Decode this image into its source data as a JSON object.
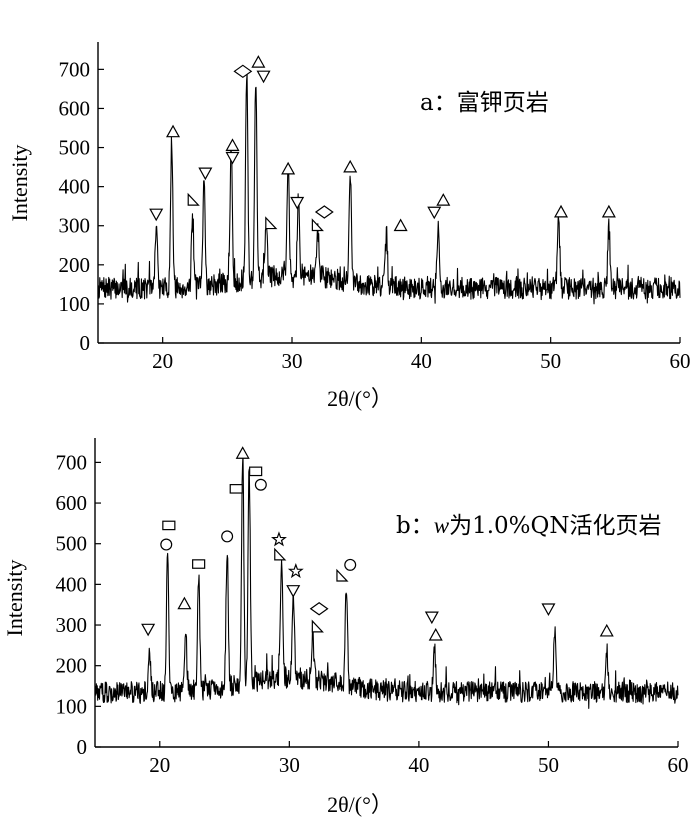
{
  "chart_data": [
    {
      "type": "line",
      "title": "a：富钾页岩",
      "xlabel": "2θ/(°）",
      "ylabel": "Intensity",
      "xlim": [
        15,
        60
      ],
      "ylim": [
        0,
        770
      ],
      "xticks": [
        "20",
        "30",
        "40",
        "50",
        "60"
      ],
      "yticks": [
        "0",
        "100",
        "200",
        "300",
        "400",
        "500",
        "600",
        "700"
      ],
      "grid": false,
      "baseline": 140,
      "noise": 28,
      "peaks": [
        {
          "x": 19.5,
          "y": 300
        },
        {
          "x": 20.7,
          "y": 515
        },
        {
          "x": 22.3,
          "y": 320
        },
        {
          "x": 23.2,
          "y": 415
        },
        {
          "x": 25.3,
          "y": 480
        },
        {
          "x": 26.5,
          "y": 675
        },
        {
          "x": 27.2,
          "y": 655
        },
        {
          "x": 28.0,
          "y": 270
        },
        {
          "x": 29.7,
          "y": 420
        },
        {
          "x": 30.5,
          "y": 330
        },
        {
          "x": 32.0,
          "y": 265
        },
        {
          "x": 34.5,
          "y": 420
        },
        {
          "x": 37.3,
          "y": 275
        },
        {
          "x": 41.3,
          "y": 300
        },
        {
          "x": 50.6,
          "y": 310
        },
        {
          "x": 54.5,
          "y": 300
        }
      ],
      "markers": [
        {
          "shape": "tri-down",
          "x": 19.5,
          "y": 330
        },
        {
          "shape": "tri-up",
          "x": 20.8,
          "y": 540
        },
        {
          "shape": "tri-right",
          "x": 22.3,
          "y": 365
        },
        {
          "shape": "tri-down",
          "x": 23.3,
          "y": 435
        },
        {
          "shape": "tri-up",
          "x": 25.4,
          "y": 505
        },
        {
          "shape": "tri-down",
          "x": 25.4,
          "y": 475
        },
        {
          "shape": "diamond",
          "x": 26.2,
          "y": 695
        },
        {
          "shape": "tri-up",
          "x": 27.4,
          "y": 718
        },
        {
          "shape": "tri-down",
          "x": 27.8,
          "y": 683
        },
        {
          "shape": "tri-right",
          "x": 28.3,
          "y": 305
        },
        {
          "shape": "tri-up",
          "x": 29.7,
          "y": 445
        },
        {
          "shape": "tri-down",
          "x": 30.4,
          "y": 360
        },
        {
          "shape": "tri-right",
          "x": 31.9,
          "y": 300
        },
        {
          "shape": "diamond",
          "x": 32.5,
          "y": 335
        },
        {
          "shape": "tri-up",
          "x": 34.5,
          "y": 450
        },
        {
          "shape": "tri-up",
          "x": 38.4,
          "y": 300
        },
        {
          "shape": "tri-down",
          "x": 41.0,
          "y": 335
        },
        {
          "shape": "tri-up",
          "x": 41.7,
          "y": 365
        },
        {
          "shape": "tri-up",
          "x": 50.8,
          "y": 335
        },
        {
          "shape": "tri-up",
          "x": 54.5,
          "y": 335
        }
      ]
    },
    {
      "type": "line",
      "title": "b：",
      "title_var": "w",
      "title_rest": "为1.0%QN活化页岩",
      "xlabel": "2θ/(°）",
      "ylabel": "Intensity",
      "xlim": [
        15,
        60
      ],
      "ylim": [
        0,
        760
      ],
      "xticks": [
        "20",
        "30",
        "40",
        "50",
        "60"
      ],
      "yticks": [
        "0",
        "100",
        "200",
        "300",
        "400",
        "500",
        "600",
        "700"
      ],
      "grid": false,
      "baseline": 135,
      "noise": 26,
      "peaks": [
        {
          "x": 19.2,
          "y": 250
        },
        {
          "x": 20.6,
          "y": 480
        },
        {
          "x": 22.0,
          "y": 290
        },
        {
          "x": 23.0,
          "y": 415
        },
        {
          "x": 25.2,
          "y": 480
        },
        {
          "x": 26.4,
          "y": 700
        },
        {
          "x": 26.9,
          "y": 660
        },
        {
          "x": 29.4,
          "y": 430
        },
        {
          "x": 30.3,
          "y": 340
        },
        {
          "x": 31.8,
          "y": 250
        },
        {
          "x": 34.4,
          "y": 385
        },
        {
          "x": 41.2,
          "y": 240
        },
        {
          "x": 50.5,
          "y": 295
        },
        {
          "x": 54.5,
          "y": 235
        }
      ],
      "markers": [
        {
          "shape": "tri-down",
          "x": 19.1,
          "y": 290
        },
        {
          "shape": "square",
          "x": 20.7,
          "y": 545
        },
        {
          "shape": "circle",
          "x": 20.5,
          "y": 498
        },
        {
          "shape": "tri-up",
          "x": 21.9,
          "y": 352
        },
        {
          "shape": "square",
          "x": 23.0,
          "y": 450
        },
        {
          "shape": "circle",
          "x": 25.2,
          "y": 518
        },
        {
          "shape": "square",
          "x": 25.9,
          "y": 635
        },
        {
          "shape": "tri-up",
          "x": 26.4,
          "y": 722
        },
        {
          "shape": "square",
          "x": 27.4,
          "y": 678
        },
        {
          "shape": "circle",
          "x": 27.8,
          "y": 645
        },
        {
          "shape": "star",
          "x": 29.2,
          "y": 510
        },
        {
          "shape": "tri-right",
          "x": 29.2,
          "y": 472
        },
        {
          "shape": "star",
          "x": 30.5,
          "y": 432
        },
        {
          "shape": "tri-down",
          "x": 30.3,
          "y": 385
        },
        {
          "shape": "diamond",
          "x": 32.3,
          "y": 340
        },
        {
          "shape": "tri-right",
          "x": 32.1,
          "y": 295
        },
        {
          "shape": "tri-right",
          "x": 34.0,
          "y": 420
        },
        {
          "shape": "circle",
          "x": 34.7,
          "y": 448
        },
        {
          "shape": "tri-down",
          "x": 41.0,
          "y": 320
        },
        {
          "shape": "tri-up",
          "x": 41.3,
          "y": 275
        },
        {
          "shape": "tri-down",
          "x": 50.0,
          "y": 340
        },
        {
          "shape": "tri-up",
          "x": 54.5,
          "y": 285
        }
      ]
    }
  ]
}
